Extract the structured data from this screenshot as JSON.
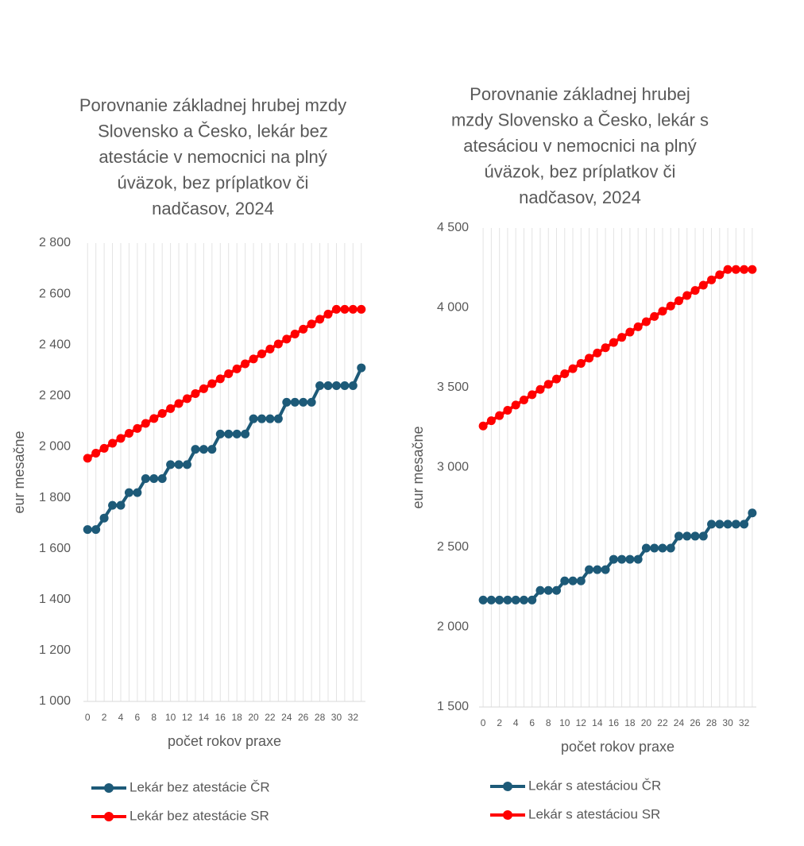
{
  "chart_data": [
    {
      "type": "line",
      "title": [
        "Porovnanie základnej hrubej mzdy",
        "Slovensko a Česko, lekár bez",
        "atestácie v nemocnici na plný",
        "úväzok, bez príplatkov či",
        "nadčasov, 2024"
      ],
      "x_label": "počet rokov praxe",
      "y_label": "eur mesačne",
      "categories": [
        "0",
        null,
        "2",
        null,
        "4",
        null,
        "6",
        null,
        "8",
        null,
        "10",
        null,
        "12",
        null,
        "14",
        null,
        "16",
        null,
        "18",
        null,
        "20",
        null,
        "22",
        null,
        "24",
        null,
        "26",
        null,
        "28",
        null,
        "30",
        null,
        "32",
        null
      ],
      "ylim": [
        1000,
        2800
      ],
      "yticks": [
        {
          "value": 1000,
          "label": "1 000"
        },
        {
          "value": 1200,
          "label": "1 200"
        },
        {
          "value": 1400,
          "label": "1 400"
        },
        {
          "value": 1600,
          "label": "1 600"
        },
        {
          "value": 1800,
          "label": "1 800"
        },
        {
          "value": 2000,
          "label": "2 000"
        },
        {
          "value": 2200,
          "label": "2 200"
        },
        {
          "value": 2400,
          "label": "2 400"
        },
        {
          "value": 2600,
          "label": "2 600"
        },
        {
          "value": 2800,
          "label": "2 800"
        }
      ],
      "grid": true,
      "legend": "bottom",
      "series": [
        {
          "name": "Lekár bez atestácie ČR",
          "color": "#1d5a78",
          "values": [
            1675,
            1675,
            1720,
            1770,
            1770,
            1820,
            1820,
            1875,
            1875,
            1875,
            1930,
            1930,
            1930,
            1990,
            1990,
            1990,
            2050,
            2050,
            2050,
            2050,
            2110,
            2110,
            2110,
            2110,
            2175,
            2175,
            2175,
            2175,
            2240,
            2240,
            2240,
            2240,
            2240,
            2310
          ]
        },
        {
          "name": "Lekár bez atestácie SR",
          "color": "#ff0000",
          "values": [
            1955,
            1975,
            1994,
            2014,
            2033,
            2053,
            2072,
            2092,
            2111,
            2131,
            2150,
            2170,
            2189,
            2209,
            2228,
            2248,
            2267,
            2287,
            2306,
            2326,
            2345,
            2365,
            2384,
            2404,
            2423,
            2443,
            2462,
            2482,
            2501,
            2521,
            2540,
            2540,
            2540,
            2540
          ]
        }
      ]
    },
    {
      "type": "line",
      "title": [
        "Porovnanie základnej hrubej",
        "mzdy Slovensko a Česko, lekár s",
        "atesáciou v nemocnici na plný",
        "úväzok, bez príplatkov či",
        "nadčasov, 2024"
      ],
      "x_label": "počet rokov praxe",
      "y_label": "eur mesačne",
      "categories": [
        "0",
        null,
        "2",
        null,
        "4",
        null,
        "6",
        null,
        "8",
        null,
        "10",
        null,
        "12",
        null,
        "14",
        null,
        "16",
        null,
        "18",
        null,
        "20",
        null,
        "22",
        null,
        "24",
        null,
        "26",
        null,
        "28",
        null,
        "30",
        null,
        "32",
        null
      ],
      "ylim": [
        1500,
        4500
      ],
      "yticks": [
        {
          "value": 1500,
          "label": "1 500"
        },
        {
          "value": 2000,
          "label": "2 000"
        },
        {
          "value": 2500,
          "label": "2 500"
        },
        {
          "value": 3000,
          "label": "3 000"
        },
        {
          "value": 3500,
          "label": "3 500"
        },
        {
          "value": 4000,
          "label": "4 000"
        },
        {
          "value": 4500,
          "label": "4 500"
        }
      ],
      "grid": true,
      "legend": "bottom",
      "series": [
        {
          "name": "Lekár s atestáciou ČR",
          "color": "#1d5a78",
          "values": [
            2170,
            2170,
            2170,
            2170,
            2170,
            2170,
            2170,
            2230,
            2230,
            2230,
            2290,
            2290,
            2290,
            2360,
            2360,
            2360,
            2425,
            2425,
            2425,
            2425,
            2495,
            2495,
            2495,
            2495,
            2570,
            2570,
            2570,
            2570,
            2645,
            2645,
            2645,
            2645,
            2645,
            2715
          ]
        },
        {
          "name": "Lekár s atestáciou SR",
          "color": "#ff0000",
          "values": [
            3260,
            3293,
            3325,
            3358,
            3391,
            3423,
            3456,
            3489,
            3521,
            3554,
            3587,
            3619,
            3652,
            3685,
            3717,
            3750,
            3783,
            3815,
            3848,
            3881,
            3913,
            3946,
            3979,
            4011,
            4044,
            4077,
            4109,
            4142,
            4175,
            4207,
            4240,
            4240,
            4240,
            4240
          ]
        }
      ]
    }
  ]
}
